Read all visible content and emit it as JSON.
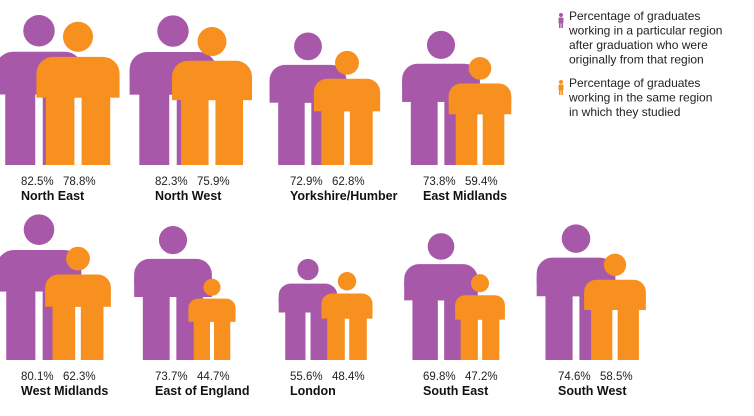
{
  "colors": {
    "origin": "#a858a8",
    "study": "#f7901e",
    "text": "#222222"
  },
  "legend": [
    {
      "key": "origin",
      "icon": "person-icon",
      "lines": [
        "Percentage of graduates",
        "working in a particular region",
        "after graduation who were",
        "originally from that region"
      ]
    },
    {
      "key": "study",
      "icon": "person-icon",
      "lines": [
        "Percentage of graduates",
        "working in the same region",
        "in which they studied"
      ]
    }
  ],
  "chart_data": {
    "type": "bar",
    "title": "",
    "xlabel": "",
    "ylabel": "",
    "ylim": [
      0,
      100
    ],
    "categories": [
      "North East",
      "North West",
      "Yorkshire/Humber",
      "East Midlands",
      "West Midlands",
      "East of England",
      "London",
      "South East",
      "South West"
    ],
    "series": [
      {
        "name": "Percentage of graduates working in a particular region after graduation who were originally from that region",
        "values": [
          82.5,
          82.3,
          72.9,
          73.8,
          80.1,
          73.7,
          55.6,
          69.8,
          74.6
        ],
        "labels": [
          "82.5%",
          "82.3%",
          "72.9%",
          "73.8%",
          "80.1%",
          "73.7%",
          "55.6%",
          "69.8%",
          "74.6%"
        ]
      },
      {
        "name": "Percentage of graduates working in the same region in which they studied",
        "values": [
          78.8,
          75.9,
          62.8,
          59.4,
          62.3,
          44.7,
          48.4,
          47.2,
          58.5
        ],
        "labels": [
          "78.8%",
          "75.9%",
          "62.8%",
          "59.4%",
          "62.3%",
          "44.7%",
          "48.4%",
          "47.2%",
          "58.5%"
        ]
      }
    ],
    "legend": "top-right"
  }
}
